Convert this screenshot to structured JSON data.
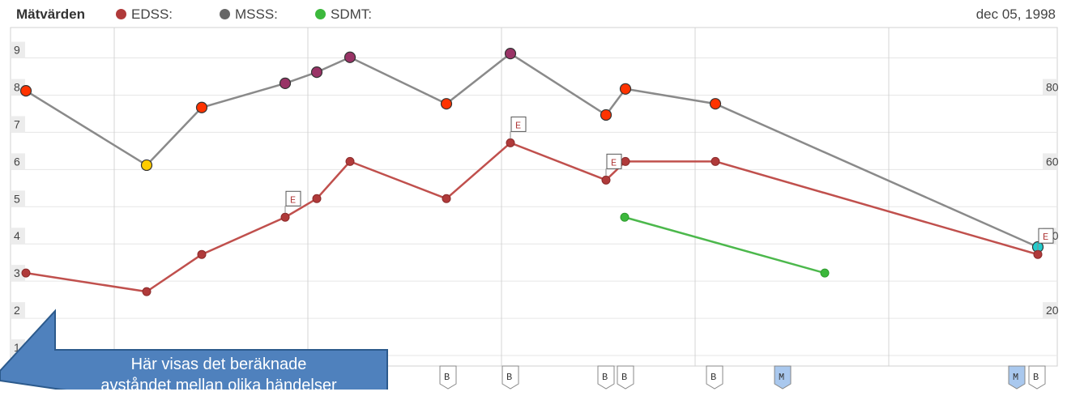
{
  "header": {
    "title": "Mätvärden",
    "date": "dec 05, 1998"
  },
  "legend": [
    {
      "name": "EDSS:",
      "color": "#b03a3a"
    },
    {
      "name": "MSSS:",
      "color": "#666666"
    },
    {
      "name": "SDMT:",
      "color": "#3cb83c"
    }
  ],
  "callout": {
    "text_line1": "Här visas det beräknade",
    "text_line2": "avståndet mellan olika händelser"
  },
  "chart_data": {
    "type": "line",
    "title": "",
    "xlabel": "",
    "ylabel": "",
    "ylim": [
      0.5,
      9.6
    ],
    "xlim": [
      0,
      1305
    ],
    "grid": true,
    "left_ticks": [
      "1",
      "2",
      "3",
      "4",
      "5",
      "6",
      "7",
      "8",
      "9"
    ],
    "right_ticks": [
      {
        "label": "20",
        "y": 2
      },
      {
        "label": "40",
        "y": 4
      },
      {
        "label": "60",
        "y": 6
      },
      {
        "label": "80",
        "y": 8
      }
    ],
    "series": [
      {
        "name": "MSSS:",
        "line_color": "#8a8a8a",
        "points": [
          {
            "x": 32,
            "y": 7.9,
            "color": "#ff3300"
          },
          {
            "x": 181,
            "y": 5.9,
            "color": "#ffcc00"
          },
          {
            "x": 249,
            "y": 7.45,
            "color": "#ff3300"
          },
          {
            "x": 352,
            "y": 8.1,
            "color": "#993366"
          },
          {
            "x": 391,
            "y": 8.4,
            "color": "#993366"
          },
          {
            "x": 432,
            "y": 8.8,
            "color": "#993366"
          },
          {
            "x": 551,
            "y": 7.55,
            "color": "#ff3300"
          },
          {
            "x": 630,
            "y": 8.9,
            "color": "#993366"
          },
          {
            "x": 748,
            "y": 7.25,
            "color": "#ff3300"
          },
          {
            "x": 772,
            "y": 7.95,
            "color": "#ff3300"
          },
          {
            "x": 883,
            "y": 7.55,
            "color": "#ff3300"
          },
          {
            "x": 1281,
            "y": 3.7,
            "color": "#22cccc"
          }
        ]
      },
      {
        "name": "EDSS:",
        "line_color": "#c0504d",
        "points": [
          {
            "x": 32,
            "y": 3.0
          },
          {
            "x": 181,
            "y": 2.5
          },
          {
            "x": 249,
            "y": 3.5
          },
          {
            "x": 352,
            "y": 4.5
          },
          {
            "x": 391,
            "y": 5.0
          },
          {
            "x": 432,
            "y": 6.0
          },
          {
            "x": 551,
            "y": 5.0
          },
          {
            "x": 630,
            "y": 6.5
          },
          {
            "x": 748,
            "y": 5.5
          },
          {
            "x": 772,
            "y": 6.0
          },
          {
            "x": 883,
            "y": 6.0
          },
          {
            "x": 1281,
            "y": 3.5
          }
        ]
      },
      {
        "name": "SDMT:",
        "line_color": "#4cb84c",
        "points": [
          {
            "x": 771,
            "y": 4.5
          },
          {
            "x": 1018,
            "y": 3.0
          }
        ]
      }
    ],
    "e_flags": [
      {
        "label": "E",
        "x": 352,
        "y": 4.5
      },
      {
        "label": "E",
        "x": 630,
        "y": 6.5
      },
      {
        "label": "E",
        "x": 748,
        "y": 5.5
      },
      {
        "label": "E",
        "x": 1281,
        "y": 3.5
      }
    ],
    "bottom_flags": [
      {
        "label": "B",
        "x": 553
      },
      {
        "label": "B",
        "x": 630
      },
      {
        "label": "B",
        "x": 748
      },
      {
        "label": "B",
        "x": 772
      },
      {
        "label": "B",
        "x": 882
      },
      {
        "label": "M",
        "x": 966,
        "highlight": true
      },
      {
        "label": "M",
        "x": 1255,
        "highlight": true
      },
      {
        "label": "B",
        "x": 1280
      }
    ]
  }
}
